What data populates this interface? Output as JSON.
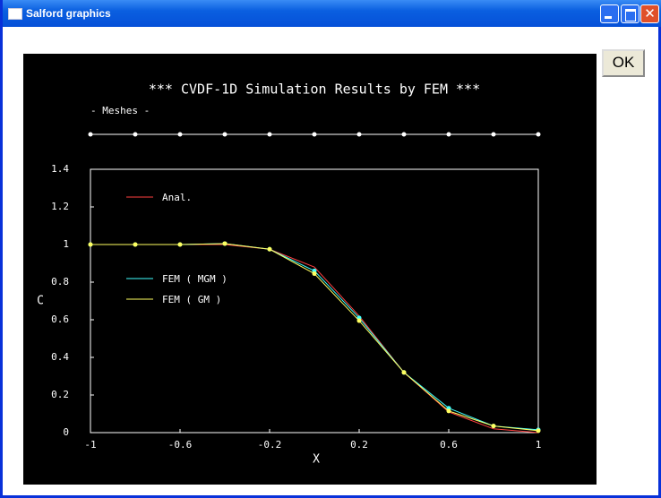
{
  "window": {
    "title": "Salford graphics"
  },
  "ok_button": "OK",
  "chart_data": {
    "type": "line",
    "title": "*** CVDF-1D Simulation Results by FEM ***",
    "mesh_label": "- Meshes -",
    "mesh_x": [
      -1,
      -0.8,
      -0.6,
      -0.4,
      -0.2,
      0,
      0.2,
      0.4,
      0.6,
      0.8,
      1
    ],
    "x_label": "X",
    "y_label": "C",
    "x": [
      -1,
      -0.8,
      -0.6,
      -0.4,
      -0.2,
      0,
      0.2,
      0.4,
      0.6,
      0.8,
      1
    ],
    "series": [
      {
        "name": "Anal.",
        "color": "#ff4040",
        "values": [
          1,
          1,
          1,
          1,
          0.975,
          0.88,
          0.62,
          0.32,
          0.11,
          0.02,
          0
        ]
      },
      {
        "name": "FEM ( MGM )",
        "color": "#40ffff",
        "values": [
          1,
          1,
          1,
          1.005,
          0.975,
          0.86,
          0.61,
          0.32,
          0.13,
          0.035,
          0.015
        ]
      },
      {
        "name": "FEM ( GM )",
        "color": "#ffff60",
        "values": [
          1,
          1,
          1,
          1.005,
          0.975,
          0.845,
          0.595,
          0.32,
          0.115,
          0.035,
          0.01
        ]
      }
    ],
    "xlim": [
      -1,
      1
    ],
    "ylim": [
      0,
      1.4
    ],
    "xticks": [
      -1,
      -0.6,
      -0.2,
      0.2,
      0.6,
      1
    ],
    "yticks": [
      0,
      0.2,
      0.4,
      0.6,
      0.8,
      1,
      1.2,
      1.4
    ]
  }
}
